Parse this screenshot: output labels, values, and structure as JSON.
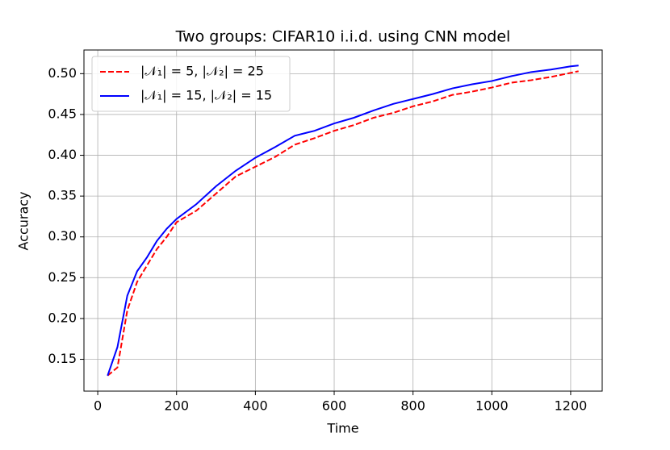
{
  "chart_data": {
    "type": "line",
    "title": "Two groups: CIFAR10 i.i.d. using CNN model",
    "xlabel": "Time",
    "ylabel": "Accuracy",
    "x": [
      25,
      50,
      75,
      100,
      125,
      150,
      175,
      200,
      250,
      300,
      350,
      400,
      450,
      500,
      550,
      600,
      650,
      700,
      750,
      800,
      850,
      900,
      950,
      1000,
      1050,
      1100,
      1150,
      1200,
      1220
    ],
    "series": [
      {
        "name": "|𝒩₁| = 5, |𝒩₂| = 25",
        "color": "#ff0000",
        "dash": true,
        "values": [
          0.13,
          0.14,
          0.21,
          0.245,
          0.265,
          0.285,
          0.3,
          0.318,
          0.332,
          0.353,
          0.374,
          0.386,
          0.398,
          0.413,
          0.421,
          0.43,
          0.437,
          0.446,
          0.452,
          0.46,
          0.466,
          0.474,
          0.478,
          0.483,
          0.489,
          0.492,
          0.496,
          0.501,
          0.503
        ]
      },
      {
        "name": "|𝒩₁| = 15, |𝒩₂| = 15",
        "color": "#0000ff",
        "dash": false,
        "values": [
          0.13,
          0.165,
          0.228,
          0.258,
          0.275,
          0.295,
          0.31,
          0.322,
          0.34,
          0.362,
          0.381,
          0.397,
          0.41,
          0.424,
          0.43,
          0.439,
          0.446,
          0.455,
          0.463,
          0.469,
          0.475,
          0.482,
          0.487,
          0.491,
          0.497,
          0.502,
          0.505,
          0.509,
          0.51
        ]
      }
    ],
    "xlim": [
      -35,
      1280
    ],
    "ylim": [
      0.111,
      0.529
    ],
    "xticks": [
      0,
      200,
      400,
      600,
      800,
      1000,
      1200
    ],
    "yticks": [
      0.15,
      {
        "value": 0.2,
        "label": "0.20"
      },
      0.25,
      {
        "value": 0.3,
        "label": "0.30"
      },
      0.35,
      {
        "value": 0.4,
        "label": "0.40"
      },
      0.45,
      {
        "value": 0.5,
        "label": "0.50"
      }
    ],
    "grid": true,
    "legend": "upper-left"
  }
}
